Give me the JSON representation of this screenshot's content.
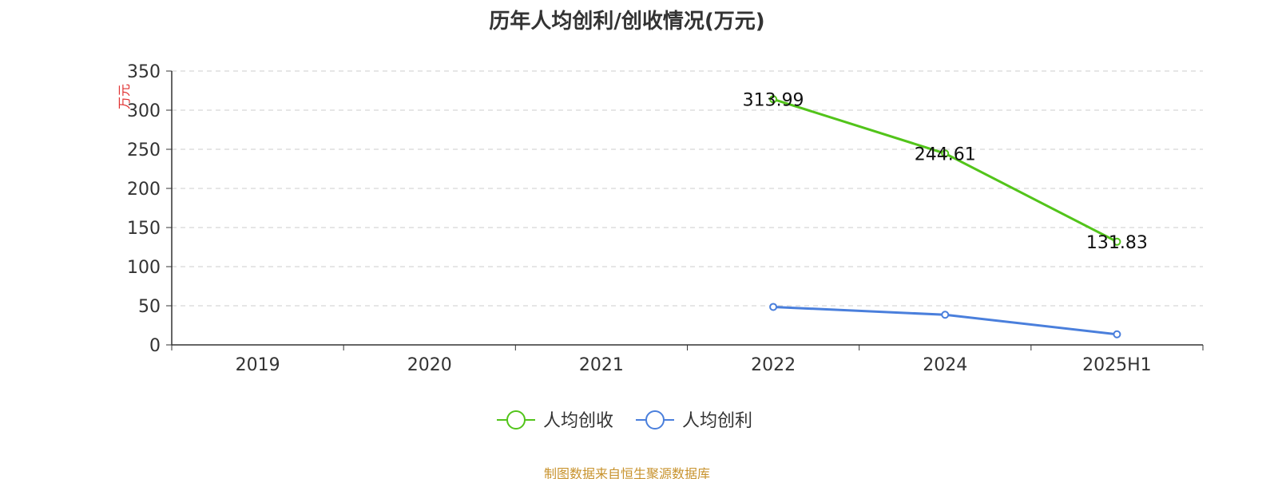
{
  "title": "历年人均创利/创收情况(万元)",
  "source": "制图数据来自恒生聚源数据库",
  "chart_data": {
    "type": "line",
    "title": "历年人均创利/创收情况(万元)",
    "ylabel": "万元",
    "categories": [
      "2019",
      "2020",
      "2021",
      "2022",
      "2024",
      "2025H1"
    ],
    "ylim": [
      0,
      350
    ],
    "yticks": [
      0,
      50,
      100,
      150,
      200,
      250,
      300,
      350
    ],
    "grid": true,
    "legend_position": "bottom",
    "series": [
      {
        "name": "人均创收",
        "color": "#52c41a",
        "values": [
          null,
          null,
          null,
          313.99,
          244.61,
          131.83
        ],
        "labels": [
          "",
          "",
          "",
          "313.99",
          "244.61",
          "131.83"
        ]
      },
      {
        "name": "人均创利",
        "color": "#4a7fdc",
        "values": [
          null,
          null,
          null,
          48.5,
          38.5,
          13.5
        ],
        "labels": []
      }
    ]
  },
  "colors": {
    "axis": "#333333",
    "grid": "#cccccc",
    "ylabel": "#e03030",
    "source": "#c8932e"
  }
}
